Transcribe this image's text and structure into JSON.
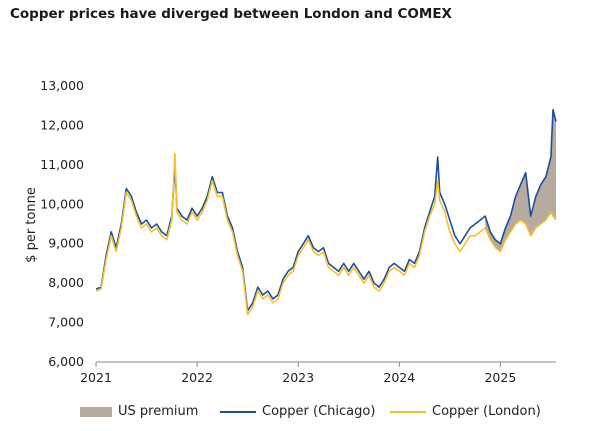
{
  "title": "Copper prices have diverged between London and COMEX",
  "chart_data": {
    "type": "line",
    "title": "Copper prices have diverged between London and COMEX",
    "xlabel": "",
    "ylabel": "$ per tonne",
    "ylim": [
      6000,
      13000
    ],
    "xlim": [
      2021.0,
      2025.55
    ],
    "yticks": [
      6000,
      7000,
      8000,
      9000,
      10000,
      11000,
      12000,
      13000
    ],
    "ytick_labels": [
      "6,000",
      "7,000",
      "8,000",
      "9,000",
      "10,000",
      "11,000",
      "12,000",
      "13,000"
    ],
    "xticks": [
      2021,
      2022,
      2023,
      2024,
      2025
    ],
    "xtick_labels": [
      "2021",
      "2022",
      "2023",
      "2024",
      "2025"
    ],
    "legend_position": "bottom",
    "shaded_area": {
      "name": "US premium",
      "between": [
        "Copper (Chicago)",
        "Copper (London)"
      ],
      "color": "#b7aba0"
    },
    "x": [
      2021.0,
      2021.05,
      2021.1,
      2021.15,
      2021.2,
      2021.25,
      2021.3,
      2021.35,
      2021.4,
      2021.45,
      2021.5,
      2021.55,
      2021.6,
      2021.65,
      2021.7,
      2021.75,
      2021.78,
      2021.8,
      2021.85,
      2021.9,
      2021.95,
      2022.0,
      2022.05,
      2022.1,
      2022.15,
      2022.2,
      2022.25,
      2022.3,
      2022.35,
      2022.4,
      2022.45,
      2022.5,
      2022.55,
      2022.6,
      2022.65,
      2022.7,
      2022.75,
      2022.8,
      2022.85,
      2022.9,
      2022.95,
      2023.0,
      2023.05,
      2023.1,
      2023.15,
      2023.2,
      2023.25,
      2023.3,
      2023.35,
      2023.4,
      2023.45,
      2023.5,
      2023.55,
      2023.6,
      2023.65,
      2023.7,
      2023.75,
      2023.8,
      2023.85,
      2023.9,
      2023.95,
      2024.0,
      2024.05,
      2024.1,
      2024.15,
      2024.2,
      2024.25,
      2024.3,
      2024.35,
      2024.38,
      2024.4,
      2024.45,
      2024.5,
      2024.55,
      2024.6,
      2024.65,
      2024.7,
      2024.75,
      2024.8,
      2024.85,
      2024.9,
      2024.95,
      2025.0,
      2025.05,
      2025.1,
      2025.15,
      2025.2,
      2025.25,
      2025.3,
      2025.35,
      2025.4,
      2025.45,
      2025.5,
      2025.52,
      2025.55
    ],
    "series": [
      {
        "name": "Copper (Chicago)",
        "color": "#1f4e9c",
        "values": [
          7850,
          7900,
          8700,
          9300,
          8900,
          9500,
          10400,
          10200,
          9800,
          9500,
          9600,
          9400,
          9500,
          9300,
          9200,
          9700,
          11000,
          9900,
          9700,
          9600,
          9900,
          9700,
          9900,
          10200,
          10700,
          10300,
          10300,
          9700,
          9400,
          8800,
          8400,
          7300,
          7500,
          7900,
          7700,
          7800,
          7600,
          7700,
          8100,
          8300,
          8400,
          8800,
          9000,
          9200,
          8900,
          8800,
          8900,
          8500,
          8400,
          8300,
          8500,
          8300,
          8500,
          8300,
          8100,
          8300,
          8000,
          7900,
          8100,
          8400,
          8500,
          8400,
          8300,
          8600,
          8500,
          8800,
          9400,
          9800,
          10200,
          11200,
          10300,
          10000,
          9600,
          9200,
          9000,
          9200,
          9400,
          9500,
          9600,
          9700,
          9300,
          9100,
          9000,
          9400,
          9700,
          10200,
          10500,
          10800,
          9700,
          10200,
          10500,
          10700,
          11200,
          12400,
          12100
        ]
      },
      {
        "name": "Copper (London)",
        "color": "#f2c12e",
        "values": [
          7800,
          7850,
          8600,
          9200,
          8800,
          9400,
          10300,
          10100,
          9700,
          9400,
          9500,
          9300,
          9400,
          9200,
          9100,
          9600,
          11300,
          9800,
          9600,
          9500,
          9800,
          9600,
          9800,
          10100,
          10600,
          10200,
          10200,
          9600,
          9300,
          8700,
          8300,
          7200,
          7400,
          7800,
          7600,
          7700,
          7500,
          7600,
          8000,
          8200,
          8300,
          8700,
          8900,
          9100,
          8800,
          8700,
          8800,
          8400,
          8300,
          8200,
          8400,
          8200,
          8400,
          8200,
          8000,
          8200,
          7900,
          7800,
          8000,
          8300,
          8400,
          8300,
          8200,
          8500,
          8400,
          8700,
          9300,
          9700,
          10000,
          10600,
          10100,
          9800,
          9300,
          9000,
          8800,
          9000,
          9200,
          9200,
          9300,
          9400,
          9100,
          8900,
          8800,
          9100,
          9300,
          9500,
          9600,
          9500,
          9200,
          9400,
          9500,
          9600,
          9800,
          9700,
          9600
        ]
      }
    ]
  },
  "legend": [
    {
      "label": "US premium",
      "kind": "area",
      "color": "#b7aba0"
    },
    {
      "label": "Copper (Chicago)",
      "kind": "line",
      "color": "#1f4e9c"
    },
    {
      "label": "Copper (London)",
      "kind": "line",
      "color": "#f2c12e"
    }
  ]
}
